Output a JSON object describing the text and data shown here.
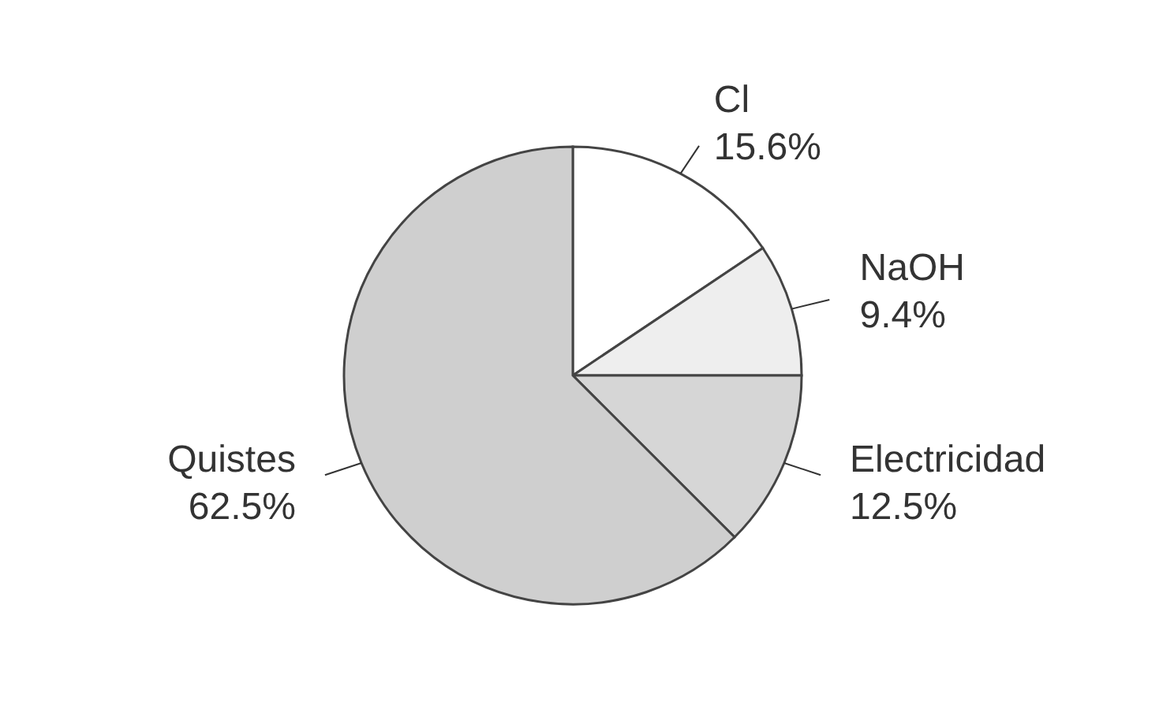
{
  "chart_data": {
    "type": "pie",
    "categories": [
      "Cl",
      "NaOH",
      "Electricidad",
      "Quistes"
    ],
    "values": [
      15.6,
      9.4,
      12.5,
      62.5
    ],
    "colors": [
      "#ffffff",
      "#eeeeee",
      "#d6d6d6",
      "#cfcfcf"
    ],
    "value_labels": [
      "15.6%",
      "9.4%",
      "12.5%",
      "62.5%"
    ]
  }
}
